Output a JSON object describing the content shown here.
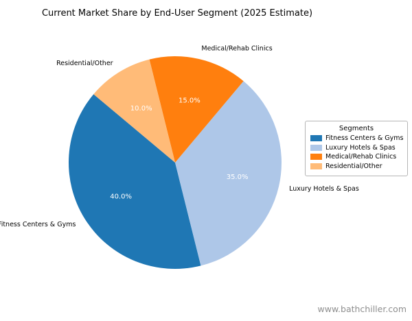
{
  "chart_data": {
    "type": "pie",
    "title": "Current Market Share by End-User Segment (2025 Estimate)",
    "slices": [
      {
        "label": "Fitness Centers & Gyms",
        "value": 40.0,
        "pct_label": "40.0%",
        "color": "#1f77b4"
      },
      {
        "label": "Luxury Hotels & Spas",
        "value": 35.0,
        "pct_label": "35.0%",
        "color": "#aec7e8"
      },
      {
        "label": "Medical/Rehab Clinics",
        "value": 15.0,
        "pct_label": "15.0%",
        "color": "#ff7f0e"
      },
      {
        "label": "Residential/Other",
        "value": 10.0,
        "pct_label": "10.0%",
        "color": "#ffbb78"
      }
    ],
    "start_angle": 140,
    "direction": "counterclockwise",
    "label_distance": 1.1,
    "pct_distance": 0.6,
    "legend": {
      "title": "Segments",
      "position": "right"
    }
  },
  "watermark": {
    "text": "www.bathchiller.com"
  }
}
